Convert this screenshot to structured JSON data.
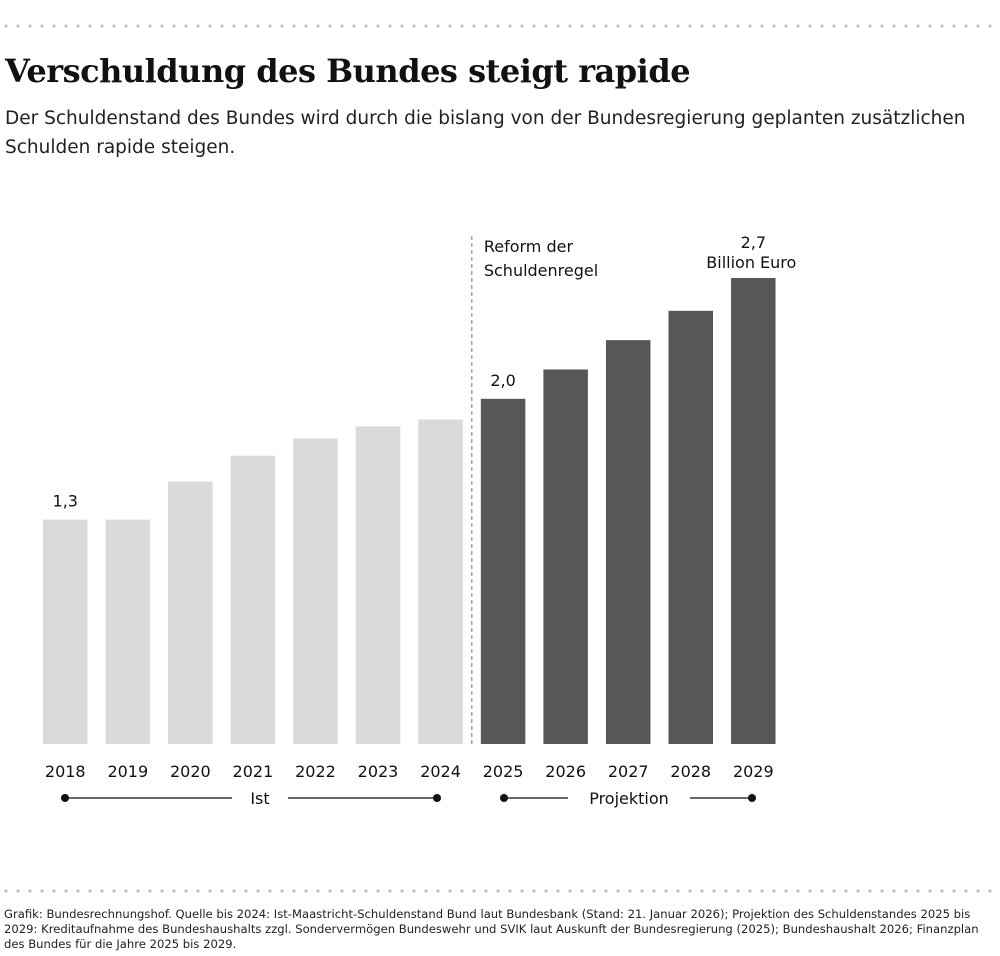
{
  "title": "Verschuldung des Bundes steigt rapide",
  "subtitle": "Der Schuldenstand des Bundes wird durch die bislang von der Bundesregierung geplanten zusätzlichen Schulden rapide steigen.",
  "source": "Grafik: Bundesrechnungshof. Quelle bis 2024: Ist-Maastricht-Schuldenstand Bund laut Bundesbank (Stand: 21. Januar 2026); Projektion des Schuldenstandes 2025 bis 2029: Kreditaufnahme des Bundeshaushalts zzgl. Sondervermögen Bundeswehr und SVIK laut Auskunft der Bundesregierung (2025); Bundeshaushalt 2026; Finanzplan des Bundes für die Jahre 2025 bis 2029.",
  "chart_data": {
    "type": "bar",
    "categories": [
      "2018",
      "2019",
      "2020",
      "2021",
      "2022",
      "2023",
      "2024",
      "2025",
      "2026",
      "2027",
      "2028",
      "2029"
    ],
    "values": [
      1.3,
      1.3,
      1.52,
      1.67,
      1.77,
      1.84,
      1.88,
      2.0,
      2.17,
      2.34,
      2.51,
      2.7
    ],
    "unit": "Billion Euro",
    "ylim": [
      0,
      2.7
    ],
    "grid": false,
    "groups": [
      {
        "label": "Ist",
        "from": "2018",
        "to": "2024",
        "color": "#dadada"
      },
      {
        "label": "Projektion",
        "from": "2025",
        "to": "2029",
        "color": "#575757"
      }
    ],
    "data_labels": [
      {
        "category": "2018",
        "text": "1,3"
      },
      {
        "category": "2025",
        "text": "2,0"
      },
      {
        "category": "2029",
        "text": "2,7",
        "text2": "Billion Euro"
      }
    ],
    "annotation": {
      "after": "2024",
      "line1": "Reform der",
      "line2": "Schuldenregel"
    }
  }
}
